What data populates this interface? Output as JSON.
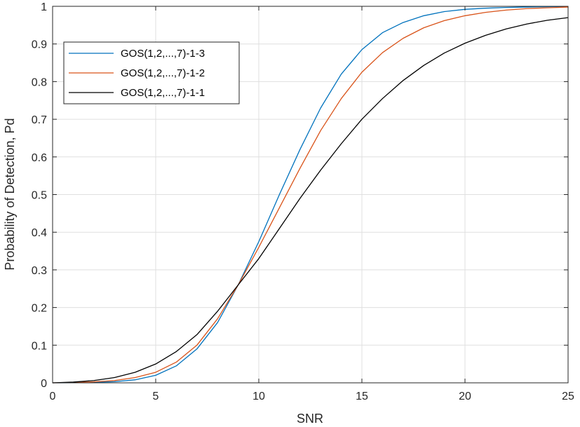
{
  "chart_data": {
    "type": "line",
    "title": "",
    "xlabel": "SNR",
    "ylabel": "Probability of Detection, Pd",
    "xlim": [
      0,
      25
    ],
    "ylim": [
      0,
      1
    ],
    "xticks": [
      0,
      5,
      10,
      15,
      20,
      25
    ],
    "yticks": [
      0,
      0.1,
      0.2,
      0.3,
      0.4,
      0.5,
      0.6,
      0.7,
      0.8,
      0.9,
      1
    ],
    "grid": true,
    "legend_position": "top-left",
    "x": [
      0,
      1,
      2,
      3,
      4,
      5,
      6,
      7,
      8,
      9,
      10,
      11,
      12,
      13,
      14,
      15,
      16,
      17,
      18,
      19,
      20,
      21,
      22,
      23,
      24,
      25
    ],
    "series": [
      {
        "name": "GOS(1,2,...,7)-1-3",
        "color": "#0072BD",
        "values": [
          0.0,
          0.0003,
          0.0012,
          0.003,
          0.008,
          0.02,
          0.045,
          0.09,
          0.16,
          0.26,
          0.375,
          0.5,
          0.62,
          0.73,
          0.82,
          0.885,
          0.93,
          0.957,
          0.975,
          0.986,
          0.992,
          0.995,
          0.997,
          0.998,
          0.999,
          0.9995
        ]
      },
      {
        "name": "GOS(1,2,...,7)-1-2",
        "color": "#D95319",
        "values": [
          0.0,
          0.0006,
          0.0025,
          0.006,
          0.014,
          0.028,
          0.055,
          0.1,
          0.17,
          0.26,
          0.36,
          0.465,
          0.57,
          0.67,
          0.755,
          0.825,
          0.877,
          0.915,
          0.943,
          0.962,
          0.975,
          0.984,
          0.99,
          0.994,
          0.996,
          0.998
        ]
      },
      {
        "name": "GOS(1,2,...,7)-1-1",
        "color": "#000000",
        "values": [
          0.0,
          0.002,
          0.006,
          0.014,
          0.028,
          0.05,
          0.083,
          0.128,
          0.19,
          0.26,
          0.33,
          0.41,
          0.49,
          0.565,
          0.635,
          0.7,
          0.755,
          0.803,
          0.843,
          0.876,
          0.902,
          0.923,
          0.94,
          0.953,
          0.963,
          0.97
        ]
      }
    ]
  }
}
